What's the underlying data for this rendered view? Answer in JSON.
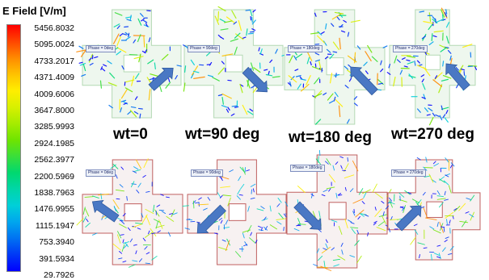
{
  "legend": {
    "title": "E Field [V/m]",
    "values": [
      "5456.8032",
      "5095.0024",
      "4733.2017",
      "4371.4009",
      "4009.6006",
      "3647.8000",
      "3285.9993",
      "2924.1985",
      "2562.3977",
      "2200.5969",
      "1838.7963",
      "1476.9955",
      "1115.1947",
      "753.3940",
      "391.5934",
      "29.7926"
    ],
    "colors": [
      "#ff0000",
      "#ff4500",
      "#ff8a00",
      "#ffc200",
      "#ffee00",
      "#d8f000",
      "#a6ec00",
      "#6fe400",
      "#3ade3a",
      "#00d86f",
      "#00d6a8",
      "#00cfd8",
      "#00a6ee",
      "#0072f2",
      "#0038f6",
      "#0000ff"
    ]
  },
  "rows": [
    {
      "outline_color": "#b4d9b4",
      "panels": [
        {
          "phase_label": "Phase = 0deg",
          "arrow_direction": "up-right"
        },
        {
          "phase_label": "Phase = 90deg",
          "arrow_direction": "down-right"
        },
        {
          "phase_label": "Phase = 180deg",
          "arrow_direction": "up-left"
        },
        {
          "phase_label": "Phase = 270deg",
          "arrow_direction": "up-left"
        }
      ]
    },
    {
      "outline_color": "#c06060",
      "panels": [
        {
          "phase_label": "Phase = 0deg",
          "arrow_direction": "up-left"
        },
        {
          "phase_label": "Phase = 90deg",
          "arrow_direction": "down-left"
        },
        {
          "phase_label": "Phase = 180deg",
          "arrow_direction": "down-right"
        },
        {
          "phase_label": "Phase = 270deg",
          "arrow_direction": "up-right"
        }
      ]
    }
  ],
  "captions": [
    "wt=0",
    "wt=90 deg",
    "wt=180 deg",
    "wt=270 deg"
  ],
  "arrow_color": "#4a78c4"
}
